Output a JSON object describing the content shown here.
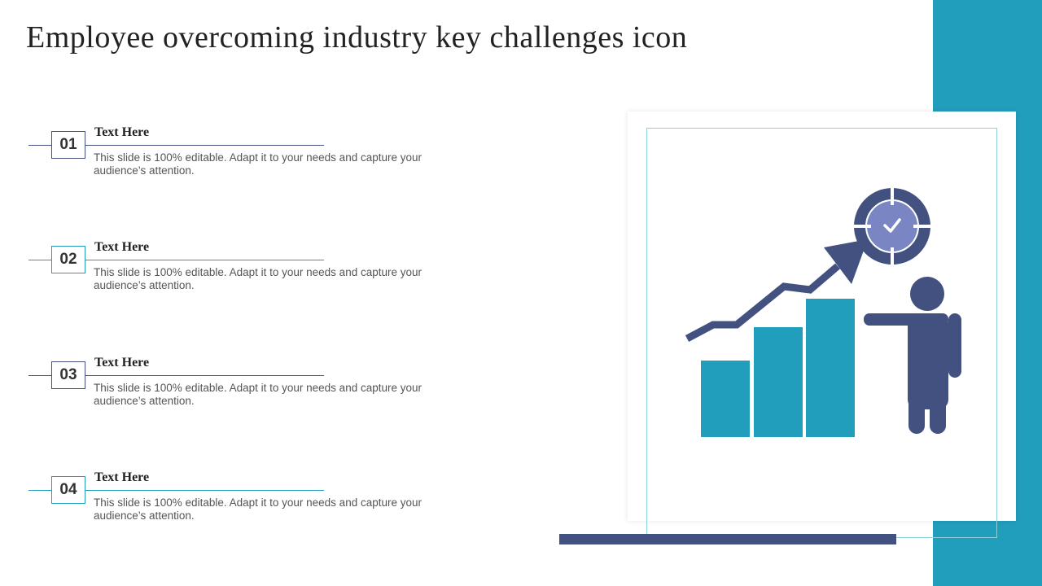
{
  "slide": {
    "title": "Employee overcoming industry key challenges icon"
  },
  "items": [
    {
      "number": "01",
      "heading": "Text Here",
      "text": "This slide is 100% editable. Adapt it to your needs and capture your audience’s attention."
    },
    {
      "number": "02",
      "heading": "Text Here",
      "text": "This slide is 100% editable. Adapt it to your needs and capture your audience’s attention."
    },
    {
      "number": "03",
      "heading": "Text Here",
      "text": "This slide is 100% editable. Adapt it to your needs and capture your audience’s attention."
    },
    {
      "number": "04",
      "heading": "Text Here",
      "text": "This slide is 100% editable. Adapt it to your needs and capture your audience’s attention."
    }
  ],
  "colors": {
    "accent_teal": "#219ebc",
    "accent_navy": "#42517f",
    "target_inner": "#7a86c4"
  },
  "icon": {
    "name": "employee-growth-target-icon"
  }
}
